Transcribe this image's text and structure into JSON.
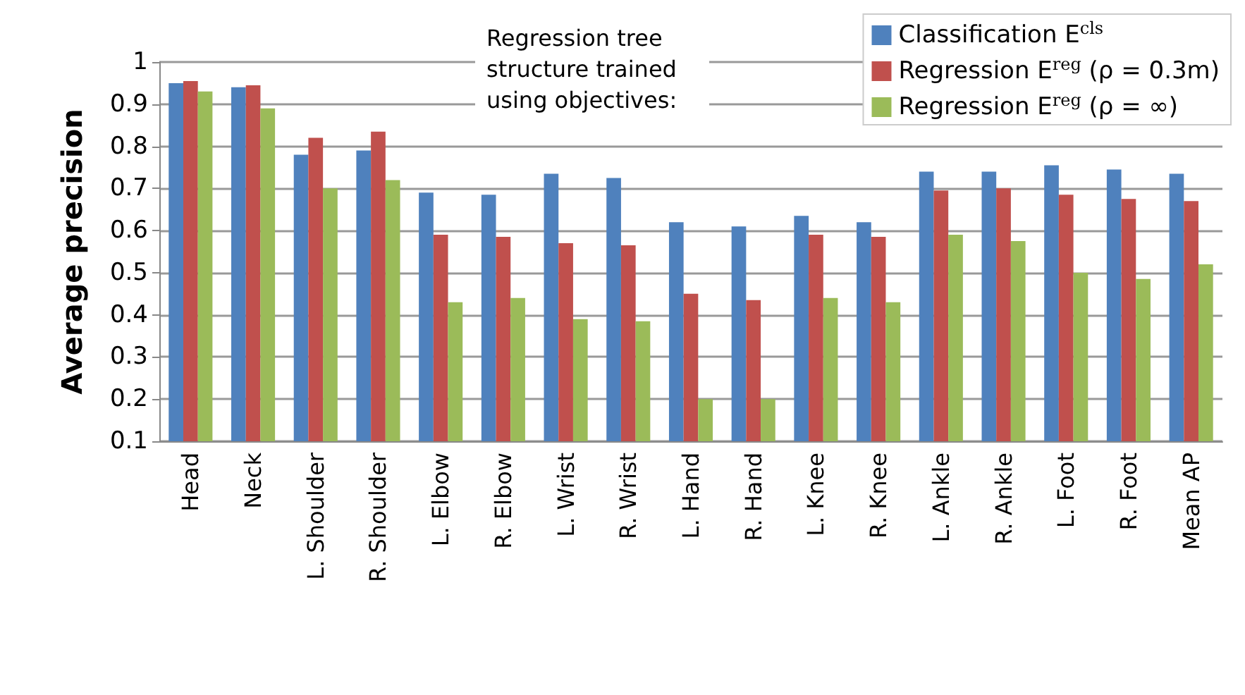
{
  "chart_data": {
    "type": "bar",
    "ylabel": "Average precision",
    "legend_title": "Regression tree structure trained using objectives:",
    "categories": [
      "Head",
      "Neck",
      "L. Shoulder",
      "R. Shoulder",
      "L. Elbow",
      "R. Elbow",
      "L. Wrist",
      "R. Wrist",
      "L. Hand",
      "R. Hand",
      "L. Knee",
      "R. Knee",
      "L. Ankle",
      "R. Ankle",
      "L. Foot",
      "R. Foot",
      "Mean AP"
    ],
    "series": [
      {
        "name": "Classification E$^{cls}$",
        "color": "#4f81bd",
        "values": [
          0.95,
          0.94,
          0.78,
          0.79,
          0.69,
          0.685,
          0.735,
          0.725,
          0.62,
          0.61,
          0.635,
          0.62,
          0.74,
          0.74,
          0.755,
          0.745,
          0.735
        ]
      },
      {
        "name": "Regression E$^{reg}$ (ρ = 0.3m)",
        "color": "#c0504d",
        "values": [
          0.955,
          0.945,
          0.82,
          0.835,
          0.59,
          0.585,
          0.57,
          0.565,
          0.45,
          0.435,
          0.59,
          0.585,
          0.695,
          0.7,
          0.685,
          0.675,
          0.67
        ]
      },
      {
        "name": "Regression E$^{reg}$ (ρ = ∞)",
        "color": "#9bbb59",
        "values": [
          0.93,
          0.89,
          0.7,
          0.72,
          0.43,
          0.44,
          0.39,
          0.385,
          0.2,
          0.2,
          0.44,
          0.43,
          0.59,
          0.575,
          0.5,
          0.485,
          0.52
        ]
      }
    ],
    "ylim": [
      0.1,
      1
    ],
    "yticks": [
      0.1,
      0.2,
      0.3,
      0.4,
      0.5,
      0.6,
      0.7,
      0.8,
      0.9,
      1
    ],
    "grid": "y",
    "legend": "top right"
  }
}
